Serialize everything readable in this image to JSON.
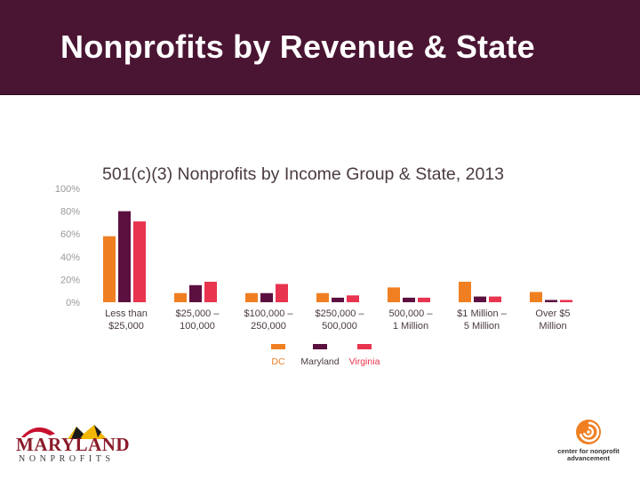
{
  "slide": {
    "title": "Nonprofits by Revenue & State"
  },
  "colors": {
    "header_bg": "#4a1533",
    "dc": "#f07f22",
    "maryland": "#5c1040",
    "virginia": "#e8344e"
  },
  "chart_data": {
    "type": "bar",
    "title": "501(c)(3) Nonprofits by Income Group & State, 2013",
    "categories": [
      [
        "Less than",
        "$25,000"
      ],
      [
        "$25,000 –",
        "100,000"
      ],
      [
        "$100,000 –",
        "250,000"
      ],
      [
        "$250,000 –",
        "500,000"
      ],
      [
        "500,000 –",
        "1 Million"
      ],
      [
        "$1 Million –",
        "5 Million"
      ],
      [
        "Over $5",
        "Million"
      ]
    ],
    "series": [
      {
        "name": "DC",
        "color": "#f07f22",
        "values": [
          58,
          8,
          8,
          8,
          13,
          18,
          9
        ]
      },
      {
        "name": "Maryland",
        "color": "#5c1040",
        "values": [
          80,
          15,
          8,
          4,
          4,
          5,
          2
        ]
      },
      {
        "name": "Virginia",
        "color": "#e8344e",
        "values": [
          71,
          18,
          16,
          6,
          4,
          5,
          2
        ]
      }
    ],
    "y_ticks": [
      "100%",
      "80%",
      "60%",
      "40%",
      "20%",
      "0%"
    ],
    "ylim": [
      0,
      100
    ],
    "grid": false,
    "legend": "bottom"
  },
  "logos": {
    "left_line1": "MARYLAND",
    "left_line2": "NONPROFITS",
    "right_line1": "center for nonprofit",
    "right_line2": "advancement"
  }
}
